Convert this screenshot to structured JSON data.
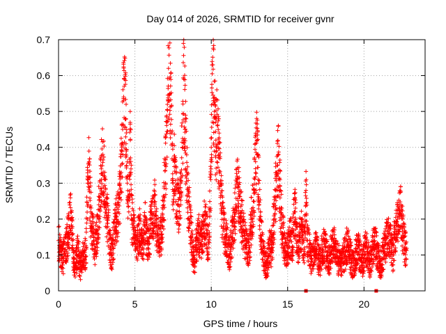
{
  "chart_data": {
    "type": "scatter",
    "title": "Day 014 of 2026, SRMTID for receiver gvnr",
    "xlabel": "GPS time / hours",
    "ylabel": "SRMTID / TECUs",
    "xlim": [
      0,
      24
    ],
    "ylim": [
      0,
      0.7
    ],
    "xticks": [
      0,
      5,
      10,
      15,
      20
    ],
    "xtick_labels": [
      "0",
      "5",
      "10",
      "15",
      "20"
    ],
    "yticks": [
      0,
      0.1,
      0.2,
      0.3,
      0.4,
      0.5,
      0.6,
      0.7
    ],
    "ytick_labels": [
      "0",
      "0.1",
      "0.2",
      "0.3",
      "0.4",
      "0.5",
      "0.6",
      "0.7"
    ],
    "grid": true,
    "marker": "plus",
    "color": "#ff0000",
    "series": [
      {
        "name": "SRMTID",
        "x": [
          0.0,
          0.1,
          0.2,
          0.3,
          0.4,
          0.5,
          0.6,
          0.7,
          0.8,
          0.9,
          1.0,
          1.1,
          1.2,
          1.3,
          1.4,
          1.5,
          1.6,
          1.7,
          1.8,
          1.9,
          2.0,
          2.1,
          2.2,
          2.3,
          2.4,
          2.5,
          2.6,
          2.7,
          2.8,
          2.9,
          3.0,
          3.1,
          3.2,
          3.3,
          3.4,
          3.5,
          3.6,
          3.7,
          3.8,
          3.9,
          4.0,
          4.1,
          4.2,
          4.3,
          4.4,
          4.5,
          4.6,
          4.7,
          4.8,
          4.9,
          5.0,
          5.1,
          5.2,
          5.3,
          5.4,
          5.5,
          5.6,
          5.7,
          5.8,
          5.9,
          6.0,
          6.1,
          6.2,
          6.3,
          6.4,
          6.5,
          6.6,
          6.7,
          6.8,
          6.9,
          7.0,
          7.1,
          7.2,
          7.3,
          7.4,
          7.5,
          7.6,
          7.7,
          7.8,
          7.9,
          8.0,
          8.1,
          8.2,
          8.3,
          8.4,
          8.5,
          8.6,
          8.7,
          8.8,
          8.9,
          9.0,
          9.1,
          9.2,
          9.3,
          9.4,
          9.5,
          9.6,
          9.7,
          9.8,
          9.9,
          10.0,
          10.1,
          10.2,
          10.3,
          10.4,
          10.5,
          10.6,
          10.7,
          10.8,
          10.9,
          11.0,
          11.1,
          11.2,
          11.3,
          11.4,
          11.5,
          11.6,
          11.7,
          11.8,
          11.9,
          12.0,
          12.1,
          12.2,
          12.3,
          12.4,
          12.5,
          12.6,
          12.7,
          12.8,
          12.9,
          13.0,
          13.1,
          13.2,
          13.3,
          13.4,
          13.5,
          13.6,
          13.7,
          13.8,
          13.9,
          14.0,
          14.1,
          14.2,
          14.3,
          14.4,
          14.5,
          14.6,
          14.7,
          14.8,
          14.9,
          15.0,
          15.1,
          15.2,
          15.3,
          15.4,
          15.5,
          15.6,
          15.7,
          15.8,
          15.9,
          16.0,
          16.1,
          16.2,
          16.3,
          16.4,
          16.5,
          16.6,
          16.7,
          16.8,
          16.9,
          17.0,
          17.1,
          17.2,
          17.3,
          17.4,
          17.5,
          17.6,
          17.7,
          17.8,
          17.9,
          18.0,
          18.1,
          18.2,
          18.3,
          18.4,
          18.5,
          18.6,
          18.7,
          18.8,
          18.9,
          19.0,
          19.1,
          19.2,
          19.3,
          19.4,
          19.5,
          19.6,
          19.7,
          19.8,
          19.9,
          20.0,
          20.1,
          20.2,
          20.3,
          20.4,
          20.5,
          20.6,
          20.7,
          20.8,
          20.9,
          21.0,
          21.1,
          21.2,
          21.3,
          21.4,
          21.5,
          21.6,
          21.7,
          21.8,
          21.9,
          22.0,
          22.1,
          22.2,
          22.3,
          22.4,
          22.5,
          22.6,
          22.7
        ],
        "y": [
          0.14,
          0.12,
          0.1,
          0.09,
          0.11,
          0.13,
          0.15,
          0.18,
          0.22,
          0.14,
          0.09,
          0.07,
          0.1,
          0.12,
          0.06,
          0.08,
          0.11,
          0.09,
          0.12,
          0.3,
          0.36,
          0.22,
          0.18,
          0.14,
          0.12,
          0.16,
          0.2,
          0.26,
          0.34,
          0.38,
          0.31,
          0.24,
          0.2,
          0.16,
          0.12,
          0.1,
          0.14,
          0.18,
          0.2,
          0.22,
          0.26,
          0.33,
          0.45,
          0.57,
          0.48,
          0.3,
          0.22,
          0.42,
          0.2,
          0.17,
          0.14,
          0.12,
          0.15,
          0.17,
          0.14,
          0.12,
          0.16,
          0.2,
          0.14,
          0.13,
          0.17,
          0.22,
          0.19,
          0.24,
          0.18,
          0.16,
          0.13,
          0.15,
          0.2,
          0.26,
          0.35,
          0.47,
          0.62,
          0.55,
          0.44,
          0.3,
          0.36,
          0.28,
          0.24,
          0.22,
          0.3,
          0.4,
          0.59,
          0.45,
          0.33,
          0.25,
          0.2,
          0.15,
          0.1,
          0.08,
          0.12,
          0.14,
          0.16,
          0.13,
          0.15,
          0.18,
          0.2,
          0.16,
          0.13,
          0.22,
          0.4,
          0.63,
          0.5,
          0.42,
          0.46,
          0.38,
          0.3,
          0.22,
          0.18,
          0.15,
          0.14,
          0.12,
          0.1,
          0.13,
          0.16,
          0.2,
          0.24,
          0.3,
          0.27,
          0.22,
          0.2,
          0.17,
          0.14,
          0.12,
          0.1,
          0.12,
          0.19,
          0.22,
          0.28,
          0.36,
          0.42,
          0.3,
          0.2,
          0.14,
          0.1,
          0.08,
          0.07,
          0.09,
          0.12,
          0.11,
          0.14,
          0.2,
          0.26,
          0.33,
          0.38,
          0.28,
          0.2,
          0.16,
          0.12,
          0.1,
          0.12,
          0.14,
          0.15,
          0.12,
          0.19,
          0.22,
          0.14,
          0.12,
          0.15,
          0.17,
          0.14,
          0.12,
          0.28,
          0.14,
          0.12,
          0.1,
          0.08,
          0.1,
          0.12,
          0.11,
          0.09,
          0.08,
          0.1,
          0.12,
          0.13,
          0.11,
          0.09,
          0.08,
          0.1,
          0.12,
          0.14,
          0.13,
          0.11,
          0.09,
          0.08,
          0.07,
          0.09,
          0.1,
          0.11,
          0.13,
          0.12,
          0.1,
          0.08,
          0.07,
          0.09,
          0.11,
          0.12,
          0.1,
          0.09,
          0.08,
          0.1,
          0.12,
          0.11,
          0.09,
          0.08,
          0.1,
          0.12,
          0.14,
          0.12,
          0.09,
          0.08,
          0.07,
          0.09,
          0.11,
          0.13,
          0.15,
          0.16,
          0.14,
          0.12,
          0.1,
          0.15,
          0.17,
          0.2,
          0.24,
          0.22,
          0.18,
          0.15,
          0.12
        ]
      }
    ],
    "zero_markers_x": [
      16.2,
      20.8
    ]
  }
}
